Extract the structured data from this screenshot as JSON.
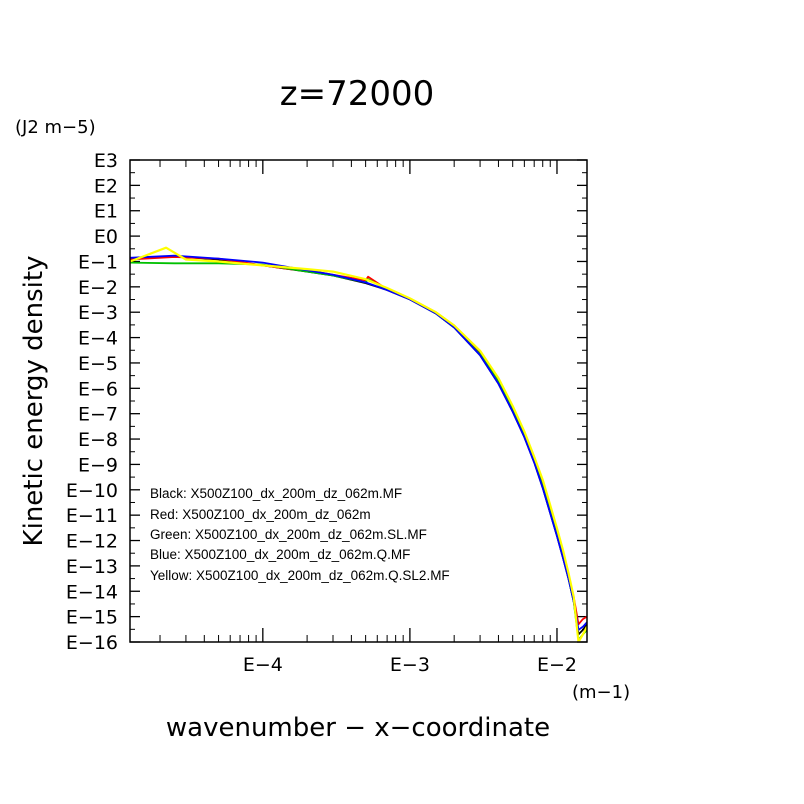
{
  "chart_data": {
    "type": "line",
    "title": "z=72000",
    "xlabel": "wavenumber − x−coordinate",
    "ylabel": "Kinetic energy density",
    "xunit": "(m−1)",
    "yunit": "(J2 m−5)",
    "x_scale": "log",
    "y_scale": "log",
    "xlim": [
      1.25e-05,
      0.016
    ],
    "ylim": [
      1e-16,
      1000
    ],
    "x_ticks": [
      {
        "value": 0.0001,
        "label": "E−4"
      },
      {
        "value": 0.001,
        "label": "E−3"
      },
      {
        "value": 0.01,
        "label": "E−2"
      }
    ],
    "y_ticks": [
      {
        "value": 1000.0,
        "label": "E3"
      },
      {
        "value": 100.0,
        "label": "E2"
      },
      {
        "value": 10.0,
        "label": "E1"
      },
      {
        "value": 1.0,
        "label": "E0"
      },
      {
        "value": 0.1,
        "label": "E−1"
      },
      {
        "value": 0.01,
        "label": "E−2"
      },
      {
        "value": 0.001,
        "label": "E−3"
      },
      {
        "value": 0.0001,
        "label": "E−4"
      },
      {
        "value": 1e-05,
        "label": "E−5"
      },
      {
        "value": 1e-06,
        "label": "E−6"
      },
      {
        "value": 1e-07,
        "label": "E−7"
      },
      {
        "value": 1e-08,
        "label": "E−8"
      },
      {
        "value": 1e-09,
        "label": "E−9"
      },
      {
        "value": 1e-10,
        "label": "E−10"
      },
      {
        "value": 1e-11,
        "label": "E−11"
      },
      {
        "value": 1e-12,
        "label": "E−12"
      },
      {
        "value": 1e-13,
        "label": "E−13"
      },
      {
        "value": 1e-14,
        "label": "E−14"
      },
      {
        "value": 1e-15,
        "label": "E−15"
      },
      {
        "value": 1e-16,
        "label": "E−16"
      }
    ],
    "grid": false,
    "legend_position": "bottom-left inside plot",
    "legend": [
      "Black: X500Z100_dx_200m_dz_062m.MF",
      "Red: X500Z100_dx_200m_dz_062m",
      "Green: X500Z100_dx_200m_dz_062m.SL.MF",
      "Blue: X500Z100_dx_200m_dz_062m.Q.MF",
      "Yellow: X500Z100_dx_200m_dz_062m.Q.SL2.MF"
    ],
    "series": [
      {
        "color": "#000000",
        "x": [
          1.25e-05,
          2.5e-05,
          5e-05,
          0.0001,
          0.0002,
          0.0003,
          0.0005,
          0.0007,
          0.001,
          0.0015,
          0.002,
          0.003,
          0.004,
          0.005,
          0.006,
          0.007,
          0.008,
          0.009,
          0.01,
          0.011,
          0.012,
          0.013,
          0.014,
          0.015,
          0.016
        ],
        "y": [
          0.13,
          0.16,
          0.12,
          0.07,
          0.04,
          0.028,
          0.014,
          0.0075,
          0.0032,
          0.0009,
          0.00025,
          2e-05,
          1.5e-06,
          1.2e-07,
          1.2e-08,
          1.2e-09,
          1.2e-10,
          1.2e-11,
          1.5e-12,
          2e-13,
          3e-14,
          4e-15,
          2e-16,
          3e-16,
          5e-16
        ]
      },
      {
        "color": "#ff0000",
        "x": [
          1.25e-05,
          2.5e-05,
          5e-05,
          0.0001,
          0.00015,
          0.0002,
          0.0003,
          0.0005,
          0.00052,
          0.0007,
          0.001,
          0.0015,
          0.002,
          0.003,
          0.004,
          0.005,
          0.006,
          0.007,
          0.008,
          0.009,
          0.01,
          0.011,
          0.012,
          0.013,
          0.014,
          0.015,
          0.016
        ],
        "y": [
          0.12,
          0.15,
          0.13,
          0.07,
          0.05,
          0.045,
          0.03,
          0.018,
          0.025,
          0.008,
          0.0035,
          0.001,
          0.0003,
          2.5e-05,
          2e-06,
          1.6e-07,
          1.6e-08,
          1.6e-09,
          1.6e-10,
          1.6e-11,
          2e-12,
          3e-13,
          4e-14,
          6e-15,
          5e-16,
          8e-16,
          1e-15
        ]
      },
      {
        "color": "#00c000",
        "x": [
          1.25e-05,
          2.5e-05,
          5e-05,
          0.0001,
          0.0002,
          0.0003,
          0.0005,
          0.00052,
          0.0007,
          0.001,
          0.0015,
          0.002,
          0.003,
          0.004,
          0.005,
          0.006,
          0.007,
          0.008,
          0.009,
          0.01,
          0.011,
          0.012,
          0.013,
          0.014,
          0.015,
          0.016
        ],
        "y": [
          0.09,
          0.085,
          0.085,
          0.075,
          0.04,
          0.028,
          0.015,
          0.02,
          0.008,
          0.0033,
          0.0009,
          0.00025,
          2.2e-05,
          1.8e-06,
          1.4e-07,
          1.4e-08,
          1.4e-09,
          1.4e-10,
          1.4e-11,
          1.8e-12,
          2.5e-13,
          3e-14,
          4e-15,
          1.2e-16,
          2e-16,
          3e-16
        ]
      },
      {
        "color": "#0000ff",
        "x": [
          1.25e-05,
          2.5e-05,
          5e-05,
          0.0001,
          0.00015,
          0.0002,
          0.0003,
          0.0005,
          0.0007,
          0.001,
          0.0015,
          0.002,
          0.003,
          0.004,
          0.005,
          0.006,
          0.007,
          0.008,
          0.009,
          0.01,
          0.011,
          0.012,
          0.013,
          0.014,
          0.015,
          0.016
        ],
        "y": [
          0.14,
          0.17,
          0.13,
          0.09,
          0.06,
          0.045,
          0.03,
          0.015,
          0.0075,
          0.0032,
          0.0009,
          0.00025,
          2e-05,
          1.5e-06,
          1.2e-07,
          1.2e-08,
          1.2e-09,
          1.2e-10,
          1.2e-11,
          1.5e-12,
          2e-13,
          3e-14,
          4e-15,
          3e-16,
          4e-16,
          6e-16
        ]
      },
      {
        "color": "#ffff00",
        "x": [
          1.25e-05,
          2.2e-05,
          3e-05,
          5e-05,
          0.0001,
          0.0002,
          0.0003,
          0.0005,
          0.0007,
          0.001,
          0.0015,
          0.002,
          0.003,
          0.004,
          0.005,
          0.006,
          0.007,
          0.008,
          0.009,
          0.01,
          0.011,
          0.012,
          0.013,
          0.014,
          0.015,
          0.016
        ],
        "y": [
          0.1,
          0.35,
          0.12,
          0.1,
          0.07,
          0.05,
          0.04,
          0.02,
          0.009,
          0.0035,
          0.001,
          0.0003,
          3e-05,
          2.5e-06,
          2e-07,
          2e-08,
          2e-09,
          2.5e-10,
          2.5e-11,
          3e-12,
          4e-13,
          5e-14,
          6e-15,
          1e-16,
          2e-16,
          4e-16
        ]
      }
    ]
  }
}
